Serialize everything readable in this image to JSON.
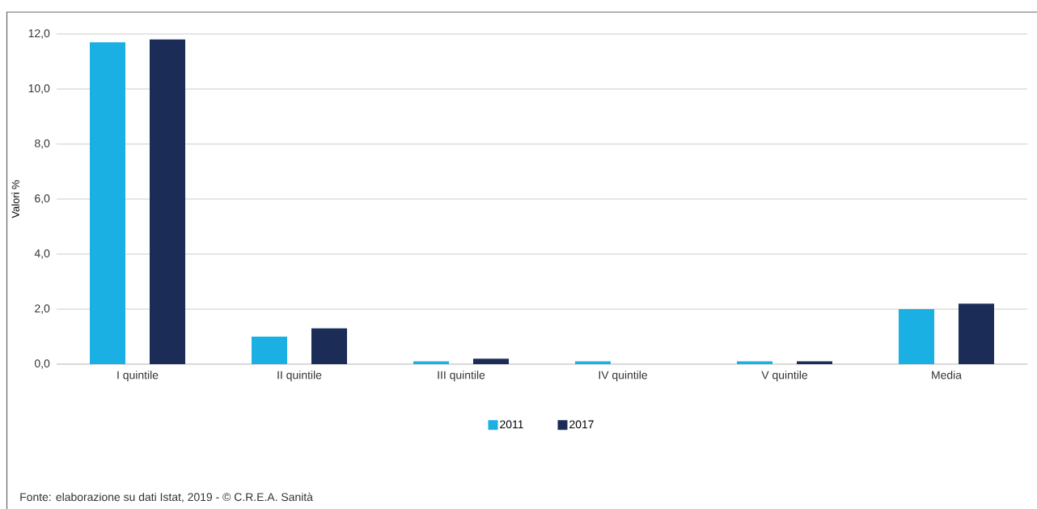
{
  "chart_data": {
    "type": "bar",
    "ylabel": "Valori %",
    "categories": [
      "I quintile",
      "II quintile",
      "III quintile",
      "IV quintile",
      "V quintile",
      "Media"
    ],
    "series": [
      {
        "name": "2011",
        "color": "#1ab0e4",
        "values": [
          11.7,
          1.0,
          0.1,
          0.1,
          0.1,
          2.0
        ]
      },
      {
        "name": "2017",
        "color": "#1b2d57",
        "values": [
          11.8,
          1.3,
          0.2,
          0.0,
          0.1,
          2.2
        ]
      }
    ],
    "ylim": [
      0,
      12
    ],
    "yticks": [
      {
        "value": 0,
        "label": "0,0"
      },
      {
        "value": 2,
        "label": "2,0"
      },
      {
        "value": 4,
        "label": "4,0"
      },
      {
        "value": 6,
        "label": "6,0"
      },
      {
        "value": 8,
        "label": "8,0"
      },
      {
        "value": 10,
        "label": "10,0"
      },
      {
        "value": 12,
        "label": "12,0"
      }
    ],
    "grid": "y",
    "legend": "bottom",
    "annotations": [
      "Fonte: elaborazione su dati Istat, 2019 - © C.R.E.A. Sanità"
    ]
  }
}
